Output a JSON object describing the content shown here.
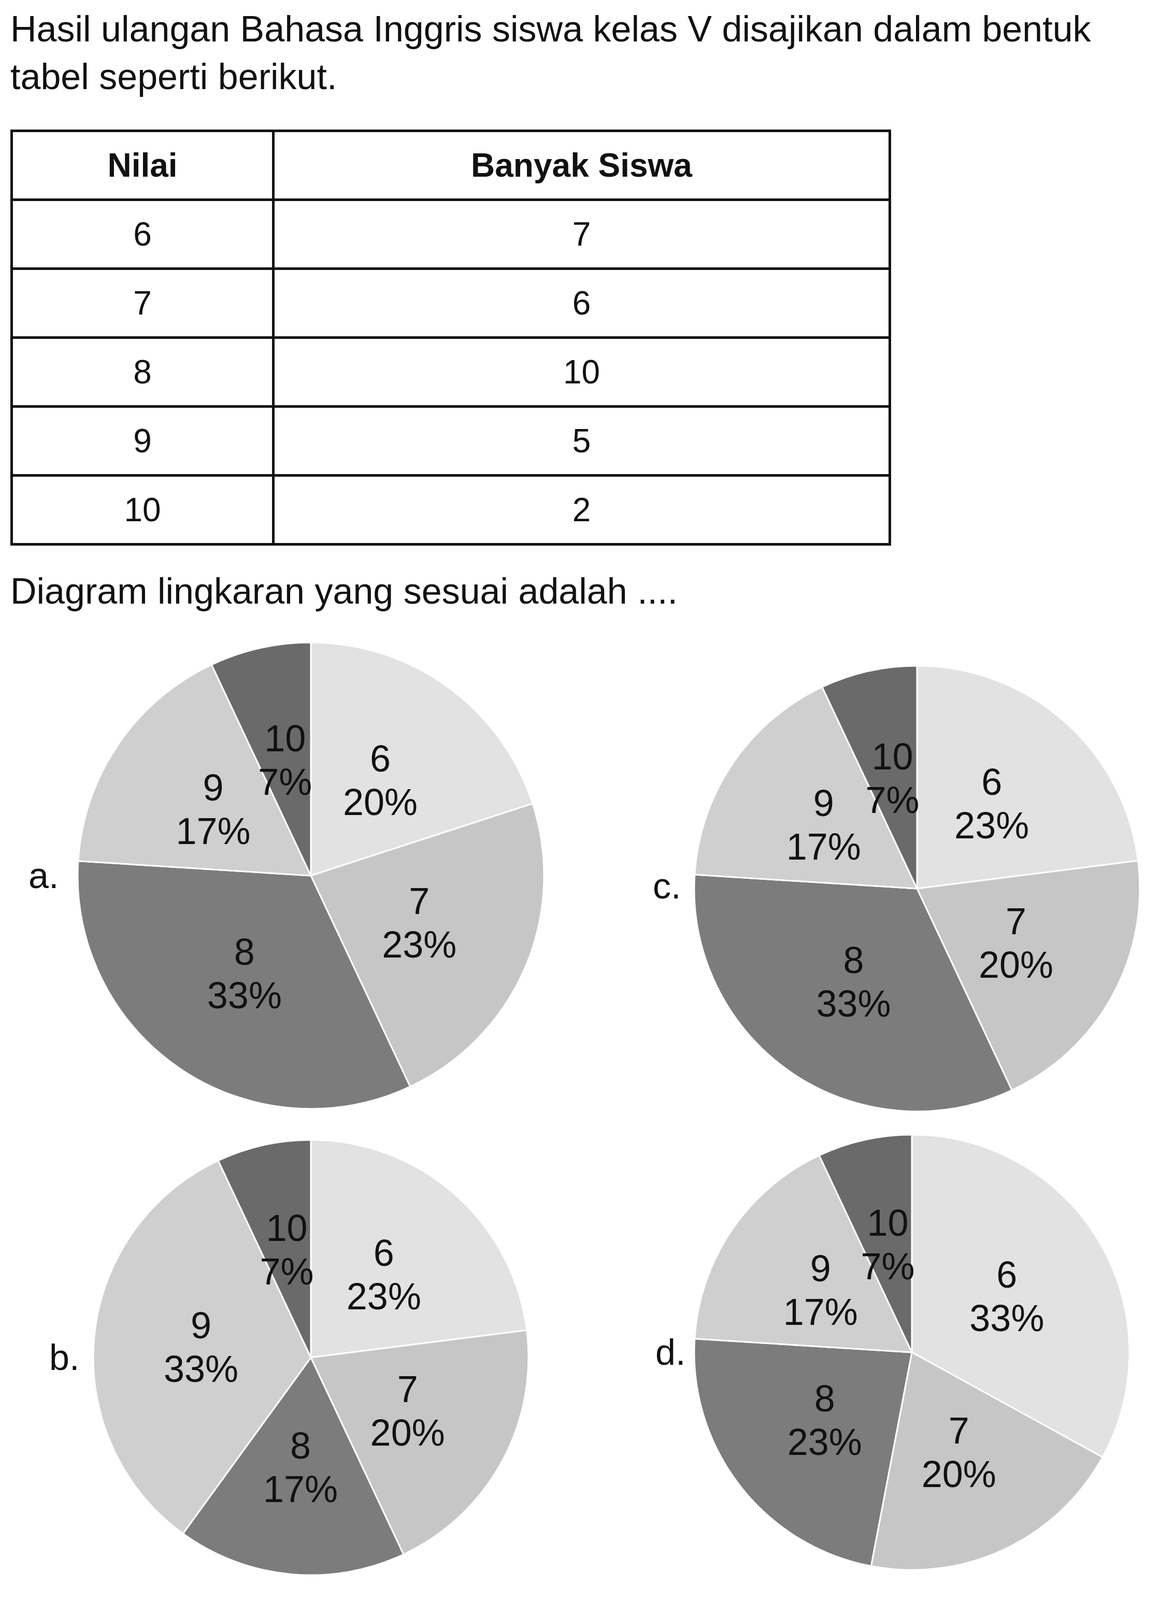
{
  "question": "Hasil ulangan Bahasa Inggris siswa kelas V disajikan dalam bentuk tabel seperti berikut.",
  "table": {
    "header": [
      "Nilai",
      "Banyak Siswa"
    ],
    "rows": [
      [
        6,
        7
      ],
      [
        7,
        6
      ],
      [
        8,
        10
      ],
      [
        9,
        5
      ],
      [
        10,
        2
      ]
    ]
  },
  "prompt": "Diagram lingkaran yang sesuai adalah ....",
  "chart_data": [
    {
      "type": "pie",
      "title": "a.",
      "categories": [
        "6",
        "7",
        "8",
        "9",
        "10"
      ],
      "values": [
        20,
        23,
        33,
        17,
        7
      ],
      "value_labels": [
        "20%",
        "23%",
        "33%",
        "17%",
        "7%"
      ],
      "colors": [
        "#e2e2e2",
        "#c6c6c6",
        "#7c7c7c",
        "#cfcfcf",
        "#6a6a6a"
      ],
      "data_labels": true
    },
    {
      "type": "pie",
      "title": "b.",
      "categories": [
        "6",
        "7",
        "8",
        "9",
        "10"
      ],
      "values": [
        23,
        20,
        17,
        33,
        7
      ],
      "value_labels": [
        "23%",
        "20%",
        "17%",
        "33%",
        "7%"
      ],
      "colors": [
        "#e2e2e2",
        "#c6c6c6",
        "#7c7c7c",
        "#cfcfcf",
        "#6a6a6a"
      ],
      "data_labels": true
    },
    {
      "type": "pie",
      "title": "c.",
      "categories": [
        "6",
        "7",
        "8",
        "9",
        "10"
      ],
      "values": [
        23,
        20,
        33,
        17,
        7
      ],
      "value_labels": [
        "23%",
        "20%",
        "33%",
        "17%",
        "7%"
      ],
      "colors": [
        "#e2e2e2",
        "#c6c6c6",
        "#7c7c7c",
        "#cfcfcf",
        "#6a6a6a"
      ],
      "data_labels": true
    },
    {
      "type": "pie",
      "title": "d.",
      "categories": [
        "6",
        "7",
        "8",
        "9",
        "10"
      ],
      "values": [
        33,
        20,
        23,
        17,
        7
      ],
      "value_labels": [
        "33%",
        "20%",
        "23%",
        "17%",
        "7%"
      ],
      "colors": [
        "#e2e2e2",
        "#c6c6c6",
        "#7c7c7c",
        "#cfcfcf",
        "#6a6a6a"
      ],
      "data_labels": true
    }
  ]
}
